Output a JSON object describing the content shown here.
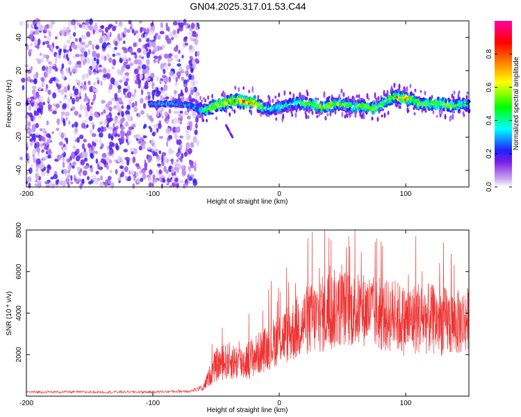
{
  "chart_data": [
    {
      "type": "heatmap",
      "title": "GN04.2025.317.01.53.C44",
      "xlabel": "Height of straight line (km)",
      "ylabel": "Frequency (Hz)",
      "xlim": [
        -200,
        150
      ],
      "ylim": [
        -50,
        50
      ],
      "x_ticks": [
        -200,
        -100,
        0,
        100
      ],
      "y_ticks": [
        -40,
        -20,
        0,
        20,
        40
      ],
      "colorbar": {
        "label": "Normalized spectral amplitude",
        "range": [
          0,
          1
        ],
        "ticks": [
          "0.0",
          "0.2",
          "0.4",
          "0.6",
          "0.8"
        ],
        "colors": [
          "#ffffff",
          "#c9a8ee",
          "#7a1de6",
          "#2020ff",
          "#00ffff",
          "#00ff00",
          "#ffff00",
          "#ff8000",
          "#ff0000",
          "#ff00a0"
        ]
      },
      "noise_region_x": [
        -200,
        -64
      ],
      "signal_ridge": {
        "x": [
          -100,
          -90,
          -80,
          -70,
          -65,
          -60,
          -55,
          -50,
          -45,
          -40,
          -35,
          -30,
          -25,
          -20,
          -15,
          -10,
          -5,
          0,
          5,
          10,
          15,
          20,
          25,
          30,
          35,
          40,
          45,
          50,
          55,
          60,
          65,
          70,
          75,
          80,
          85,
          90,
          95,
          100,
          105,
          110,
          115,
          120,
          125,
          130,
          135,
          140,
          145,
          150
        ],
        "frequency": [
          0,
          0,
          0,
          -1,
          -3,
          -4,
          -3,
          -1,
          0,
          1,
          2,
          2,
          1,
          1,
          -1,
          -3,
          -3,
          -2,
          -1,
          0,
          1,
          0,
          0,
          -1,
          -2,
          -1,
          0,
          0,
          -1,
          -2,
          -1,
          -2,
          -3,
          -1,
          2,
          4,
          4,
          3,
          3,
          0,
          0,
          0,
          0,
          0,
          -1,
          -1,
          0,
          -1
        ],
        "amplitude": [
          0.35,
          0.4,
          0.35,
          0.4,
          0.4,
          0.5,
          0.65,
          0.75,
          0.8,
          0.85,
          0.8,
          0.9,
          0.95,
          0.9,
          0.65,
          0.5,
          0.45,
          0.5,
          0.5,
          0.5,
          0.55,
          0.55,
          0.6,
          0.6,
          0.7,
          0.75,
          0.6,
          0.6,
          0.55,
          0.55,
          0.6,
          0.65,
          0.7,
          0.6,
          0.65,
          0.7,
          0.8,
          0.85,
          0.7,
          0.6,
          0.6,
          0.65,
          0.7,
          0.7,
          0.65,
          0.6,
          0.55,
          0.5
        ]
      },
      "secondary_feature": {
        "x": [
          -42,
          -37
        ],
        "frequency": [
          -13,
          -20
        ]
      }
    },
    {
      "type": "line",
      "title": "",
      "xlabel": "Height of straight line (km)",
      "ylabel": "SNR (10 * v/v)",
      "xlim": [
        -200,
        150
      ],
      "ylim": [
        0,
        8000
      ],
      "x_ticks": [
        -200,
        -100,
        0,
        100
      ],
      "y_ticks": [
        2000,
        4000,
        6000,
        8000
      ],
      "color": "#ee3333",
      "series": [
        {
          "name": "SNR",
          "envelope_x": [
            -200,
            -150,
            -100,
            -70,
            -60,
            -55,
            -50,
            -40,
            -30,
            -20,
            -10,
            0,
            10,
            20,
            30,
            40,
            50,
            60,
            70,
            80,
            90,
            100,
            110,
            120,
            130,
            140,
            150
          ],
          "envelope_mean": [
            200,
            200,
            200,
            250,
            400,
            1000,
            1500,
            1700,
            1600,
            1900,
            2300,
            2800,
            3100,
            3600,
            3800,
            4100,
            4300,
            4100,
            4200,
            3800,
            3900,
            3600,
            3800,
            3700,
            3600,
            3500,
            3700
          ],
          "envelope_spread": [
            60,
            60,
            60,
            80,
            150,
            500,
            800,
            900,
            900,
            1000,
            1100,
            1300,
            1500,
            1700,
            1800,
            2000,
            1900,
            1800,
            1800,
            1700,
            1800,
            1700,
            1800,
            1700,
            1700,
            1600,
            1600
          ],
          "peak_values": [
            {
              "x": 26,
              "y": 7900
            },
            {
              "x": 36,
              "y": 8000
            },
            {
              "x": 41,
              "y": 7500
            },
            {
              "x": 55,
              "y": 7700
            },
            {
              "x": 77,
              "y": 7600
            },
            {
              "x": 108,
              "y": 7700
            },
            {
              "x": 130,
              "y": 7400
            }
          ]
        }
      ]
    }
  ]
}
